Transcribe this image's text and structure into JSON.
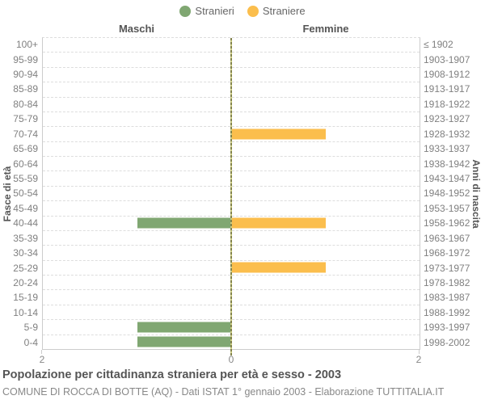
{
  "legend": {
    "items": [
      {
        "label": "Stranieri",
        "color": "#80A772"
      },
      {
        "label": "Straniere",
        "color": "#FBBE4D"
      }
    ]
  },
  "headers": {
    "male": "Maschi",
    "female": "Femmine"
  },
  "axes": {
    "left_title": "Fasce di età",
    "right_title": "Anni di nascita",
    "x_ticks": [
      "2",
      "0",
      "2"
    ]
  },
  "footer": {
    "title": "Popolazione per cittadinanza straniera per età e sesso - 2003",
    "subtitle": "COMUNE DI ROCCA DI BOTTE (AQ) - Dati ISTAT 1° gennaio 2003 - Elaborazione TUTTITALIA.IT"
  },
  "chart_data": {
    "type": "bar",
    "variant": "population-pyramid",
    "title": "Popolazione per cittadinanza straniera per età e sesso - 2003",
    "categories": [
      "100+",
      "95-99",
      "90-94",
      "85-89",
      "80-84",
      "75-79",
      "70-74",
      "65-69",
      "60-64",
      "55-59",
      "50-54",
      "45-49",
      "40-44",
      "35-39",
      "30-34",
      "25-29",
      "20-24",
      "15-19",
      "10-14",
      "5-9",
      "0-4"
    ],
    "birth_year_labels": [
      "≤ 1902",
      "1903-1907",
      "1908-1912",
      "1913-1917",
      "1918-1922",
      "1923-1927",
      "1928-1932",
      "1933-1937",
      "1938-1942",
      "1943-1947",
      "1948-1952",
      "1953-1957",
      "1958-1962",
      "1963-1967",
      "1968-1972",
      "1973-1977",
      "1978-1982",
      "1983-1987",
      "1988-1992",
      "1993-1997",
      "1998-2002"
    ],
    "series": [
      {
        "name": "Stranieri",
        "side": "left",
        "color": "#80A772",
        "values": [
          0,
          0,
          0,
          0,
          0,
          0,
          0,
          0,
          0,
          0,
          0,
          0,
          1,
          0,
          0,
          0,
          0,
          0,
          0,
          1,
          1
        ]
      },
      {
        "name": "Straniere",
        "side": "right",
        "color": "#FBBE4D",
        "values": [
          0,
          0,
          0,
          0,
          0,
          0,
          1,
          0,
          0,
          0,
          0,
          0,
          1,
          0,
          0,
          1,
          0,
          0,
          0,
          0,
          0
        ]
      }
    ],
    "xlim_each_side": [
      0,
      2
    ],
    "x_ticks": [
      "2",
      "0",
      "2"
    ],
    "grid": true,
    "legend_position": "top"
  }
}
